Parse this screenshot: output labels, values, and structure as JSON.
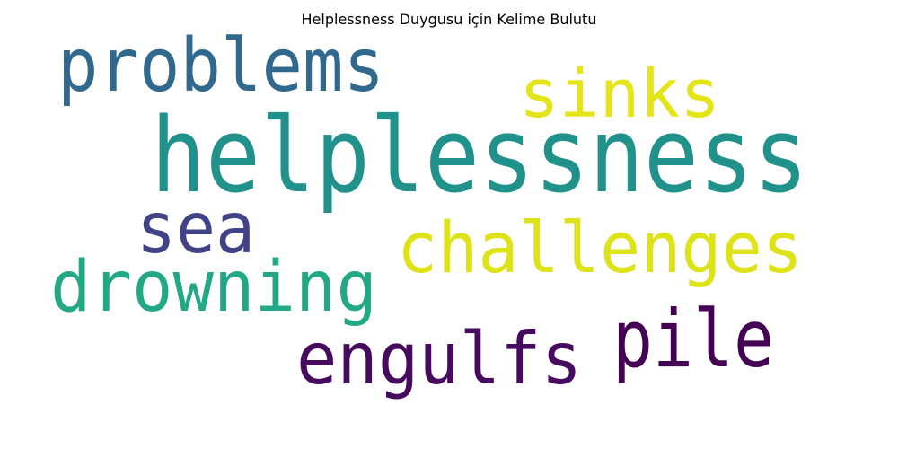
{
  "title": "Helplessness Duygusu için Kelime Bulutu",
  "words": [
    {
      "text": "problems",
      "color": "#31688e"
    },
    {
      "text": "sinks",
      "color": "#e5e419"
    },
    {
      "text": "helplessness",
      "color": "#21918c"
    },
    {
      "text": "sea",
      "color": "#404387"
    },
    {
      "text": "challenges",
      "color": "#dde318"
    },
    {
      "text": "drowning",
      "color": "#22a884"
    },
    {
      "text": "pile",
      "color": "#440154"
    },
    {
      "text": "engulfs",
      "color": "#460b5e"
    }
  ]
}
